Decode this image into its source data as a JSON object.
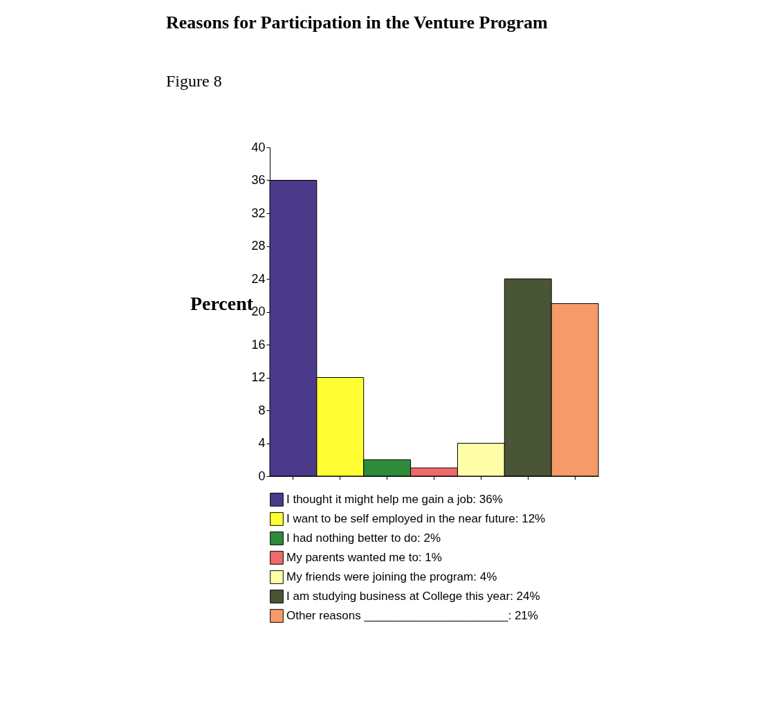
{
  "chart_data": {
    "type": "bar",
    "title": "Reasons for Participation in the Venture Program",
    "ylabel": "Percent",
    "annotations": [
      "Figure 8"
    ],
    "categories": [
      null,
      null,
      null,
      null,
      null,
      null,
      null
    ],
    "series": [
      {
        "name": "I thought it might help me gain a job: 36%",
        "color": "#4b3a8a",
        "values": [
          36,
          null,
          null,
          null,
          null,
          null,
          null
        ]
      },
      {
        "name": "I want to be self employed in the near future: 12%",
        "color": "#ffff33",
        "values": [
          null,
          12,
          null,
          null,
          null,
          null,
          null
        ]
      },
      {
        "name": "I had nothing better to do: 2%",
        "color": "#2e8b3a",
        "values": [
          null,
          null,
          2,
          null,
          null,
          null,
          null
        ]
      },
      {
        "name": "My parents wanted me to: 1%",
        "color": "#f06a6a",
        "values": [
          null,
          null,
          null,
          1,
          null,
          null,
          null
        ]
      },
      {
        "name": "My friends were joining the program: 4%",
        "color": "#ffffa8",
        "values": [
          null,
          null,
          null,
          null,
          4,
          null,
          null
        ]
      },
      {
        "name": "I am studying business at College this year: 24%",
        "color": "#4a5535",
        "values": [
          null,
          null,
          null,
          null,
          null,
          24,
          null
        ]
      },
      {
        "name": "Other reasons ______________________: 21%",
        "color": "#f79a6a",
        "values": [
          null,
          null,
          null,
          null,
          null,
          null,
          21
        ]
      }
    ],
    "ylim": [
      0,
      40
    ],
    "yticks": [
      0,
      4,
      8,
      12,
      16,
      20,
      24,
      28,
      32,
      36,
      40
    ],
    "grid": false,
    "legend": "bottom",
    "tick_labels": "y"
  }
}
